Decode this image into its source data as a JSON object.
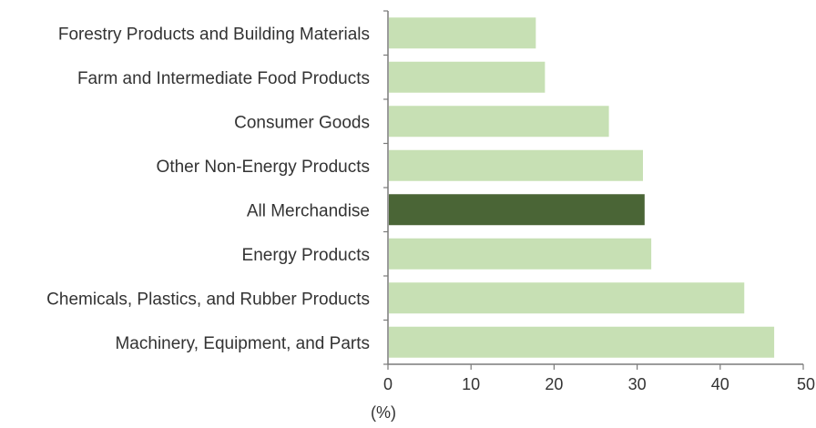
{
  "colors": {
    "bar": "#c7e0b4",
    "highlight": "#4a6536",
    "axis": "#7a7a7a",
    "text": "#333333"
  },
  "chart_data": {
    "type": "bar",
    "orientation": "horizontal",
    "categories": [
      "Forestry Products and Building Materials",
      "Farm and Intermediate Food Products",
      "Consumer Goods",
      "Other Non-Energy Products",
      "All Merchandise",
      "Energy Products",
      "Chemicals, Plastics, and Rubber Products",
      "Machinery, Equipment, and Parts"
    ],
    "values": [
      17.8,
      18.9,
      26.6,
      30.7,
      30.9,
      31.7,
      42.9,
      46.5
    ],
    "highlight_category": "All Merchandise",
    "title": "",
    "xlabel": "(%)",
    "ylabel": "",
    "xlim": [
      0,
      50
    ],
    "xticks": [
      "0",
      "10",
      "20",
      "30",
      "40",
      "50"
    ],
    "grid": false,
    "legend": false
  }
}
